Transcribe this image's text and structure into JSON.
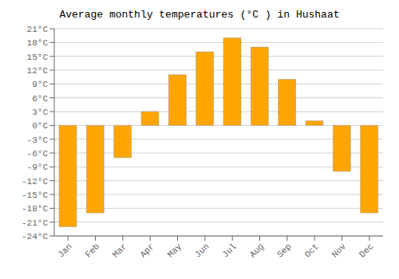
{
  "chart_data": {
    "type": "bar",
    "title": "Average monthly temperatures (°C ) in Hushaat",
    "categories": [
      "Jan",
      "Feb",
      "Mar",
      "Apr",
      "May",
      "Jun",
      "Jul",
      "Aug",
      "Sep",
      "Oct",
      "Nov",
      "Dec"
    ],
    "values": [
      -22,
      -19,
      -7,
      3,
      11,
      16,
      19,
      17,
      10,
      1,
      -10,
      -19
    ],
    "color": "#FFA500",
    "ylim": [
      -24,
      21
    ],
    "yticks": [
      {
        "value": -24,
        "label": "-24°C"
      },
      {
        "value": -21,
        "label": "-21°C"
      },
      {
        "value": -18,
        "label": "-18°C"
      },
      {
        "value": -15,
        "label": "-15°C"
      },
      {
        "value": -12,
        "label": "-12°C"
      },
      {
        "value": -9,
        "label": "-9°C"
      },
      {
        "value": -6,
        "label": "-6°C"
      },
      {
        "value": -3,
        "label": "-3°C"
      },
      {
        "value": 0,
        "label": "0°C"
      },
      {
        "value": 3,
        "label": "3°C"
      },
      {
        "value": 6,
        "label": "6°C"
      },
      {
        "value": 9,
        "label": "9°C"
      },
      {
        "value": 12,
        "label": "12°C"
      },
      {
        "value": 15,
        "label": "15°C"
      },
      {
        "value": 18,
        "label": "18°C"
      },
      {
        "value": 21,
        "label": "21°C"
      }
    ],
    "grid": true
  }
}
